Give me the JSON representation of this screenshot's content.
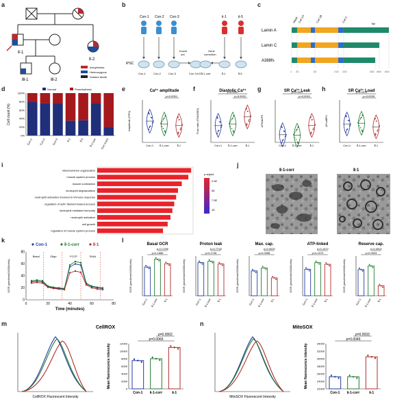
{
  "panel_labels": {
    "a": "a",
    "b": "b",
    "c": "c",
    "d": "d",
    "e": "e",
    "f": "f",
    "g": "g",
    "h": "h",
    "i": "i",
    "j": "j",
    "k": "k",
    "l": "l",
    "m": "m",
    "n": "n"
  },
  "pedigree": {
    "proband_label": "Ⅱ-1",
    "sibling_label": "Ⅱ-2",
    "child1_label": "Ⅲ-1",
    "child2_label": "Ⅲ-2",
    "legend": [
      {
        "label": "Arrhythmias",
        "color": "#c0272d"
      },
      {
        "label": "Heterozygous",
        "color": "#1f4e9a"
      },
      {
        "label": "Sudden death",
        "color": "#222222"
      }
    ]
  },
  "workflow": {
    "donors_left": [
      "Con-1",
      "Con-2",
      "Con-3"
    ],
    "donors_right": [
      "Ⅱ-1",
      "Ⅱ-5"
    ],
    "knockout_label": "Knock\nout",
    "correction_label": "Gene\ncorrection",
    "ipsc_label": "iPSC",
    "cells": [
      "Con-1",
      "Con-2",
      "Con-3",
      "Con 3-KO",
      "Ⅱ-1-corr",
      "Ⅱ-1",
      "Ⅱ-5"
    ]
  },
  "protein_domains": {
    "rows": [
      "Lamin A",
      "Lamin C",
      "A388fs"
    ],
    "domains": [
      "Head",
      "Coil 1A",
      "Coil 1B",
      "Coil 2",
      "Tail"
    ],
    "axis_ticks": [
      "1",
      "33",
      "82",
      "218",
      "230",
      "383",
      "566",
      "664"
    ]
  },
  "chart_data": [
    {
      "id": "d",
      "type": "bar",
      "ylabel": "Cell count (%)",
      "categories": [
        "Con-1",
        "Con-2",
        "Con-3",
        "Ⅱ-1",
        "Ⅱ-5",
        "Ⅱ-1-corr",
        "Con 3-KO"
      ],
      "series": [
        {
          "name": "Normal",
          "values": [
            79,
            76,
            75,
            35,
            36,
            75,
            20
          ],
          "color": "#1f2f7a"
        },
        {
          "name": "Proarrhythmic",
          "values": [
            21,
            24,
            25,
            65,
            64,
            25,
            80
          ],
          "color": "#a5181c"
        }
      ],
      "ylim": [
        0,
        100
      ],
      "yticks": [
        "0%",
        "20%",
        "40%",
        "60%",
        "80%",
        "100%"
      ]
    },
    {
      "id": "e",
      "type": "violin",
      "title": "Ca²⁺ amplitude",
      "ylabel": "Amplitude (F/F0)",
      "categories": [
        "Con-1",
        "Ⅱ-1-corr",
        "Ⅱ-1"
      ],
      "colors": [
        "#1f3aa0",
        "#1f7a2e",
        "#b02a2a"
      ],
      "medians": [
        1.0,
        0.92,
        0.88
      ],
      "ylim": [
        0.4,
        1.6
      ],
      "pvals": [
        "p<0.0001"
      ]
    },
    {
      "id": "f",
      "type": "violin",
      "title": "Diastolic Ca²⁺",
      "ylabel": "Fura ratio (F340/380)",
      "categories": [
        "Con-1",
        "Ⅱ-1-corr",
        "Ⅱ-1"
      ],
      "colors": [
        "#1f3aa0",
        "#1f7a2e",
        "#b02a2a"
      ],
      "medians": [
        0.42,
        0.43,
        0.48
      ],
      "ylim": [
        0.3,
        0.6
      ],
      "pvals": [
        "p=0.0002",
        "p=0.0007"
      ]
    },
    {
      "id": "g",
      "type": "violin",
      "title": "SR Ca²⁺ Leak",
      "ylabel": "ΔFleak/F0",
      "categories": [
        "Con-1",
        "Ⅱ-1-corr",
        "Ⅱ-1"
      ],
      "colors": [
        "#1f3aa0",
        "#1f7a2e",
        "#b02a2a"
      ],
      "medians": [
        0.18,
        0.17,
        0.4
      ],
      "ylim": [
        0,
        1.0
      ],
      "pvals": [
        "p<0.0001",
        "p<0.0001"
      ]
    },
    {
      "id": "h",
      "type": "violin",
      "title": "SR Ca²⁺ Load",
      "ylabel": "ΔFcaff/F0",
      "categories": [
        "Con-1",
        "Ⅱ-1-corr",
        "Ⅱ-1"
      ],
      "colors": [
        "#1f3aa0",
        "#1f7a2e",
        "#b02a2a"
      ],
      "medians": [
        5.2,
        5.4,
        4.4
      ],
      "ylim": [
        0,
        12
      ],
      "pvals": [
        "p=0.0039",
        "p=0.0013"
      ]
    },
    {
      "id": "i",
      "type": "bar",
      "orientation": "horizontal",
      "categories": [
        "mitochondrion organization",
        "muscle system process",
        "muscle contraction",
        "neutrophil degranulation",
        "neutrophil activation involved in immune response",
        "regulation of actin filament-based process",
        "neutrophil mediated immunity",
        "neutrophil activation",
        "cell growth",
        "regulation of muscle system process"
      ],
      "values": [
        1.0,
        0.97,
        0.9,
        0.86,
        0.84,
        0.82,
        0.8,
        0.78,
        0.75,
        0.7
      ],
      "color": "#e8232a",
      "legend_title": "p.adjust",
      "legend_ticks": [
        "2.5E",
        "5E",
        "7.5E",
        "1E"
      ]
    },
    {
      "id": "k",
      "type": "line",
      "ylabel": "OCR (pmol/min/10000cells)",
      "xlabel": "Time (minutes)",
      "xlim": [
        0,
        80
      ],
      "ylim": [
        0,
        80
      ],
      "xticks": [
        "0",
        "20",
        "40",
        "60",
        "80"
      ],
      "yticks": [
        "0",
        "20",
        "40",
        "60",
        "80"
      ],
      "legend": [
        "Con-1",
        "Ⅱ-1-corr",
        "Ⅱ-1"
      ],
      "injections": [
        "Basal",
        "Oligo",
        "FCCP",
        "R/AA"
      ],
      "x": [
        5,
        10,
        15,
        20,
        25,
        30,
        35,
        40,
        45,
        50,
        55,
        60,
        65,
        70
      ],
      "series": [
        {
          "name": "Con-1",
          "values": [
            30,
            31,
            30,
            22,
            20,
            19,
            18,
            55,
            60,
            58,
            26,
            22,
            20,
            19
          ],
          "color": "#1f3aa0"
        },
        {
          "name": "Ⅱ-1-corr",
          "values": [
            32,
            33,
            32,
            23,
            21,
            20,
            19,
            58,
            64,
            62,
            28,
            23,
            21,
            20
          ],
          "color": "#1f7a2e"
        },
        {
          "name": "Ⅱ-1",
          "values": [
            28,
            29,
            28,
            21,
            19,
            18,
            17,
            45,
            48,
            46,
            25,
            20,
            18,
            17
          ],
          "color": "#b02a2a"
        }
      ]
    },
    {
      "id": "l",
      "type": "bar",
      "subplots": [
        {
          "title": "Basal OCR",
          "values": [
            130,
            165,
            145
          ],
          "ylim": [
            0,
            180
          ],
          "pvals": [
            "p=0.1686",
            "p=0.1798"
          ],
          "ylabel": "OCR (pmol/min/10000cells)"
        },
        {
          "title": "Proton leak",
          "values": [
            50,
            52,
            48
          ],
          "ylim": [
            0,
            60
          ],
          "pvals": [
            "p=0.1746",
            "p=0.7718"
          ],
          "ylabel": "OCR (pmol/min/10000cells)"
        },
        {
          "title": "Max. cap.",
          "values": [
            25,
            28,
            18
          ],
          "ylim": [
            0,
            40
          ],
          "pvals": [
            "p=0.0058",
            "p=0.0032"
          ],
          "ylabel": "OCR (pmol/min/10000cells)"
        },
        {
          "title": "ATP-linked",
          "values": [
            80,
            100,
            95
          ],
          "ylim": [
            0,
            120
          ],
          "pvals": [
            "p=0.1073",
            "p=0.1372"
          ],
          "ylabel": "OCR (pmol/min/10000cells)"
        },
        {
          "title": "Reserve cap.",
          "values": [
            145,
            165,
            55
          ],
          "ylim": [
            0,
            220
          ],
          "pvals": [
            "p=0.0003",
            "p=0.0002"
          ],
          "ylabel": "OCR (pmol/min/10000cells)"
        }
      ],
      "categories": [
        "Con-1",
        "Ⅱ-1-corr",
        "Ⅱ-1"
      ],
      "colors": [
        "#1f3aa0",
        "#1f7a2e",
        "#b02a2a"
      ]
    },
    {
      "id": "m",
      "type": "bar",
      "title": "CellROX",
      "ylabel": "Mean fluorescence intensity",
      "categories": [
        "Con-1",
        "Ⅱ-1-corr",
        "Ⅱ-1"
      ],
      "values": [
        7500,
        8000,
        11000
      ],
      "ylim": [
        0,
        12000
      ],
      "yticks": [
        "0",
        "2000",
        "4000",
        "6000",
        "8000",
        "10000",
        "12000"
      ],
      "pvals": [
        "p=0.0066",
        "p=0.0002"
      ],
      "histogram_xlabel": "CellROX Fluorescent Intensity",
      "colors": [
        "#1f3aa0",
        "#1f7a2e",
        "#b02a2a"
      ]
    },
    {
      "id": "n",
      "type": "bar",
      "title": "MitoSOX",
      "ylabel": "Mean fluorescence intensity",
      "categories": [
        "Con-1",
        "Ⅱ-1-corr",
        "Ⅱ-1"
      ],
      "values": [
        25200,
        25200,
        30500
      ],
      "ylim": [
        22000,
        34000
      ],
      "yticks": [
        "22000",
        "24000",
        "26000",
        "28000",
        "30000",
        "32000",
        "34000"
      ],
      "pvals": [
        "p=0.0046",
        "p=0.0033"
      ],
      "histogram_xlabel": "MitoSOX Fluorescent Intensity",
      "colors": [
        "#1f3aa0",
        "#1f7a2e",
        "#b02a2a"
      ]
    }
  ],
  "micrograph": {
    "left_label": "Ⅱ-1-corr",
    "right_label": "Ⅱ-1"
  }
}
